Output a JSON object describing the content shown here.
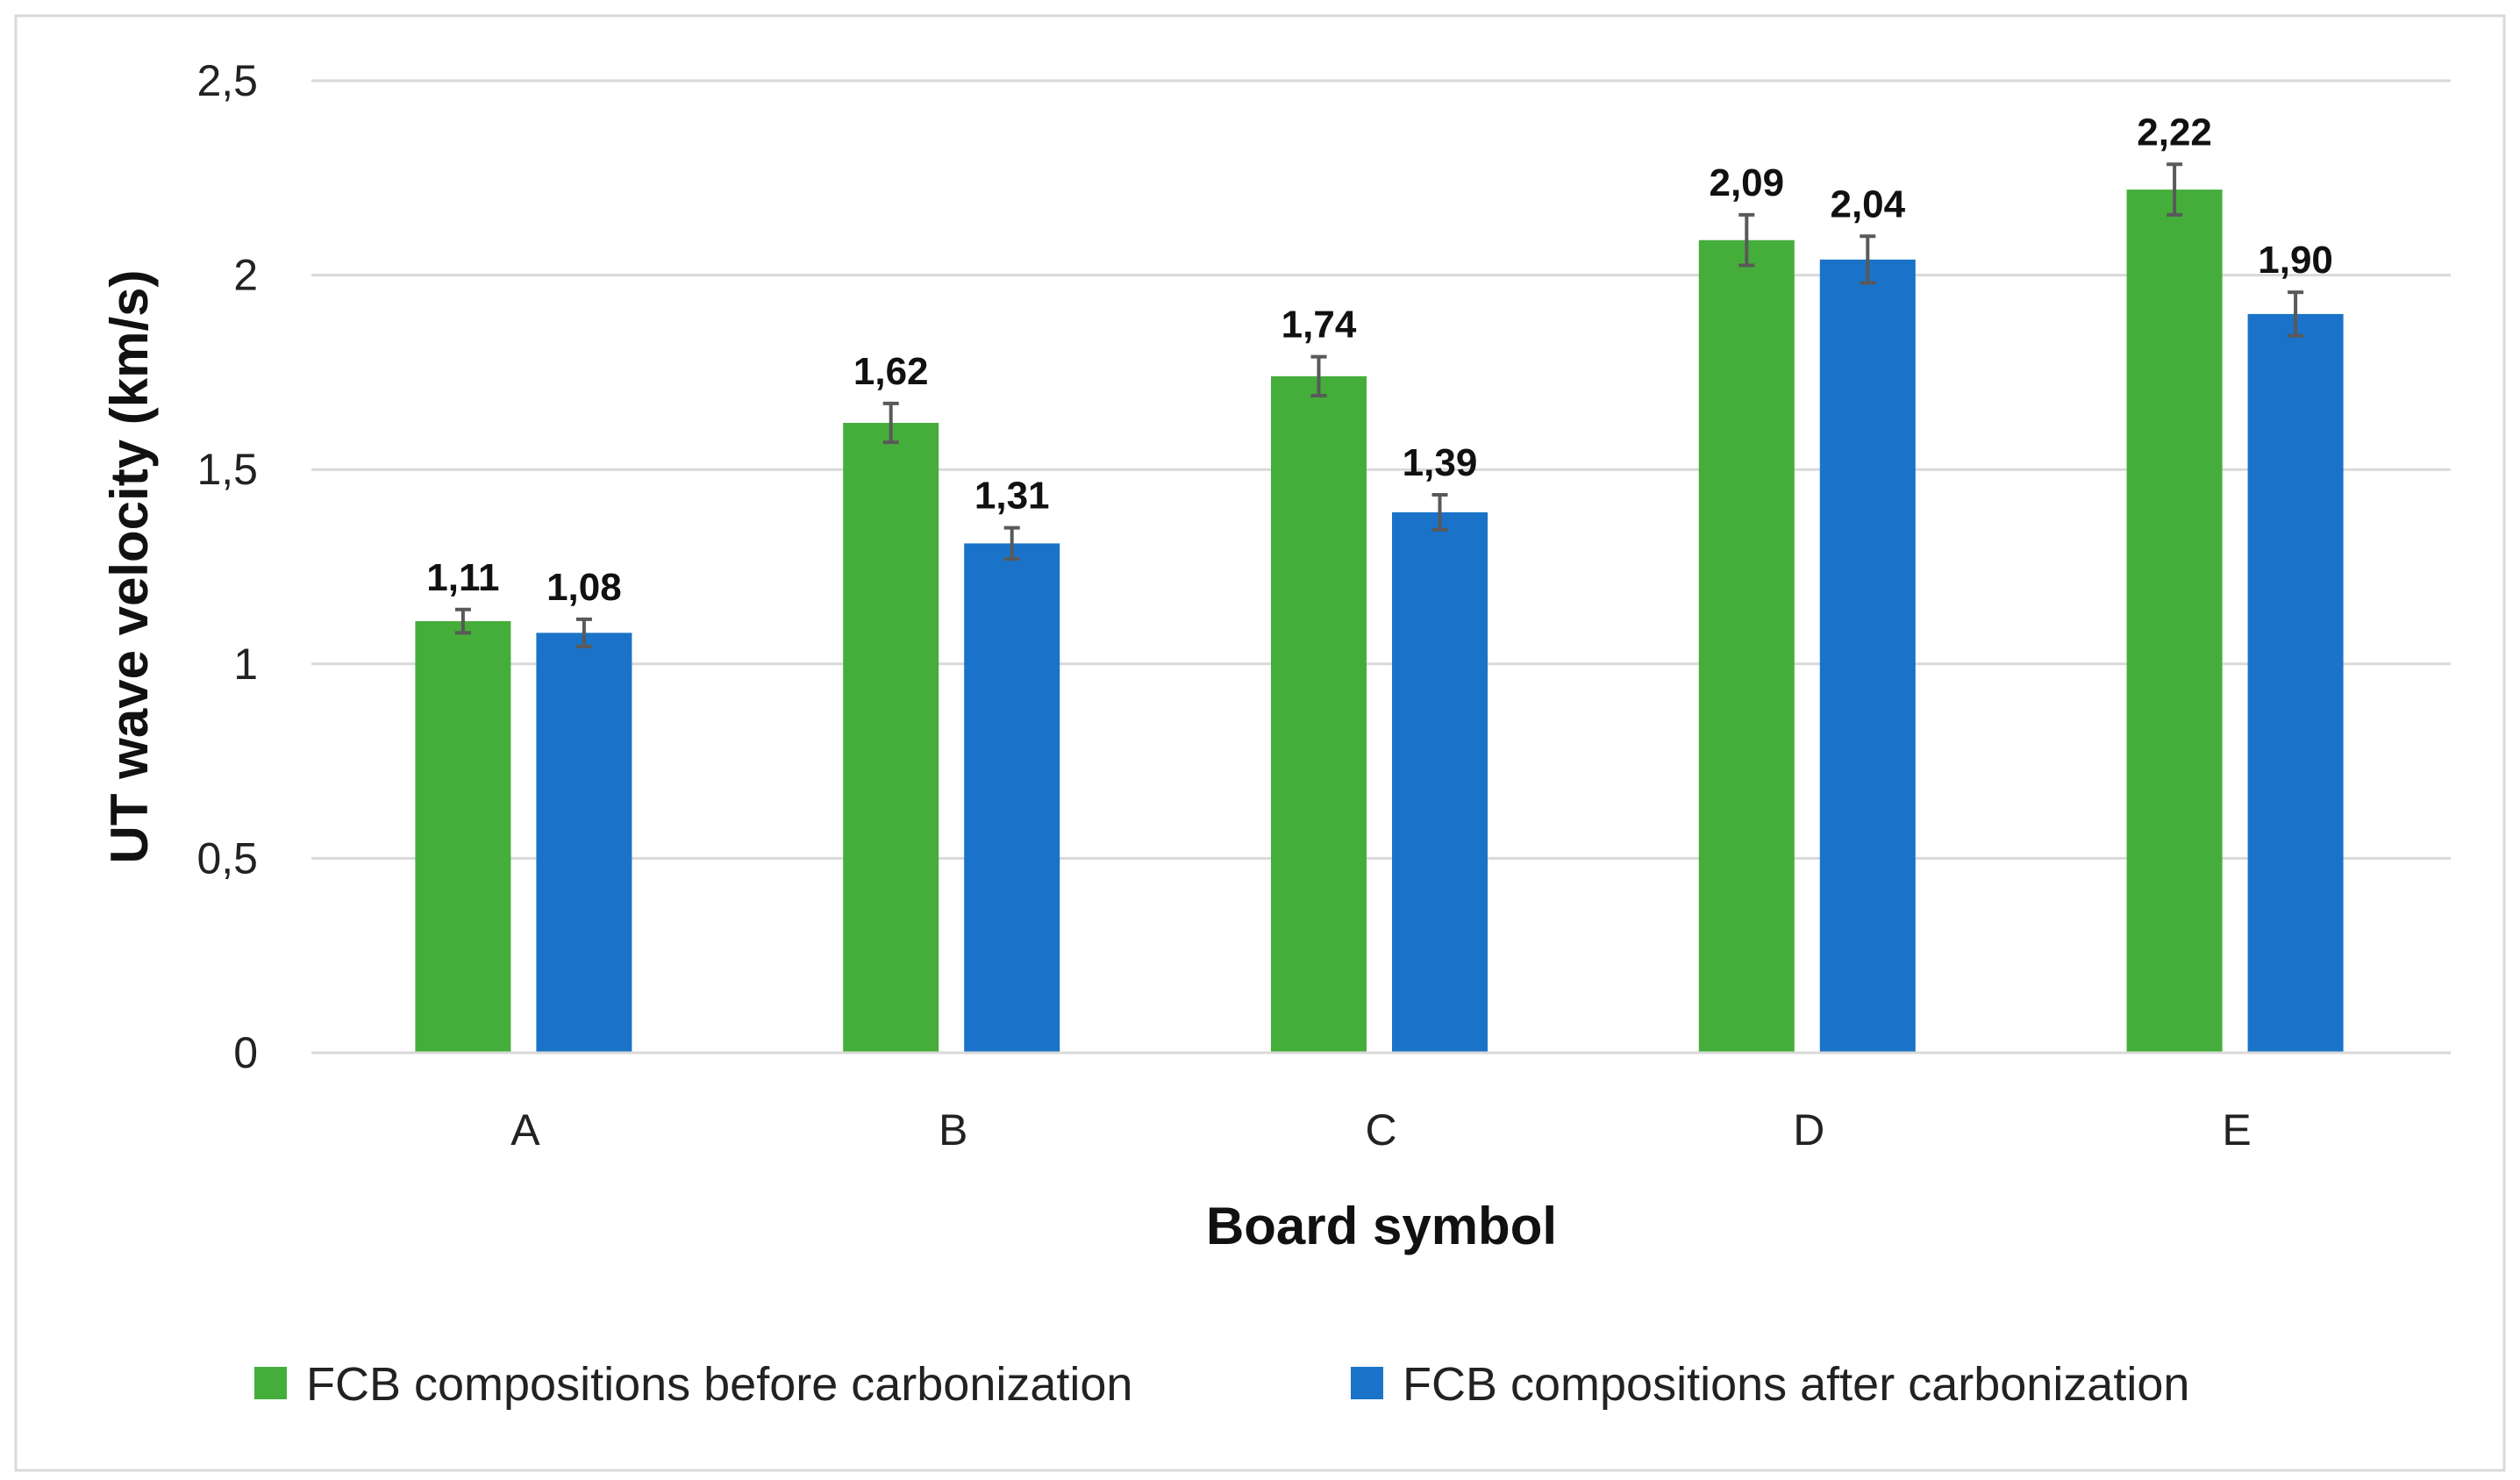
{
  "chart_data": {
    "type": "bar",
    "title": "",
    "xlabel": "Board symbol",
    "ylabel": "UT wave velocity (km/s)",
    "categories": [
      "A",
      "B",
      "C",
      "D",
      "E"
    ],
    "ylim": [
      0,
      2.5
    ],
    "yticks": [
      "0",
      "0,5",
      "1",
      "1,5",
      "2",
      "2,5"
    ],
    "ytick_values": [
      0,
      0.5,
      1,
      1.5,
      2,
      2.5
    ],
    "grid": true,
    "legend": "bottom",
    "series": [
      {
        "name": "FCB compositions before carbonization",
        "color": "#45AE3B",
        "values": [
          1.11,
          1.62,
          1.74,
          2.09,
          2.22
        ],
        "labels": [
          "1,11",
          "1,62",
          "1,74",
          "2,09",
          "2,22"
        ],
        "errors": [
          0.03,
          0.05,
          0.05,
          0.065,
          0.065
        ]
      },
      {
        "name": "FCB compositions after carbonization",
        "color": "#1A73C8",
        "values": [
          1.08,
          1.31,
          1.39,
          2.04,
          1.9
        ],
        "labels": [
          "1,08",
          "1,31",
          "1,39",
          "2,04",
          "1,90"
        ],
        "errors": [
          0.035,
          0.04,
          0.045,
          0.06,
          0.056
        ]
      }
    ]
  }
}
